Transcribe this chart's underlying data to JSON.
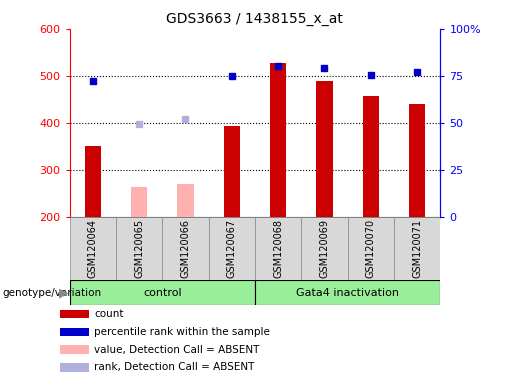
{
  "title": "GDS3663 / 1438155_x_at",
  "samples": [
    "GSM120064",
    "GSM120065",
    "GSM120066",
    "GSM120067",
    "GSM120068",
    "GSM120069",
    "GSM120070",
    "GSM120071"
  ],
  "bar_values": [
    350,
    null,
    null,
    393,
    527,
    490,
    457,
    440
  ],
  "bar_absent_values": [
    null,
    263,
    270,
    null,
    null,
    null,
    null,
    null
  ],
  "percentile_values": [
    490,
    null,
    null,
    500,
    520,
    517,
    502,
    508
  ],
  "percentile_absent_values": [
    null,
    398,
    408,
    null,
    null,
    null,
    null,
    null
  ],
  "bar_color": "#cc0000",
  "bar_absent_color": "#ffb0b0",
  "percentile_color": "#0000cc",
  "percentile_absent_color": "#b0b0dd",
  "ylim_left": [
    200,
    600
  ],
  "ylim_right": [
    0,
    100
  ],
  "yticks_left": [
    200,
    300,
    400,
    500,
    600
  ],
  "yticks_right": [
    0,
    25,
    50,
    75,
    100
  ],
  "yticklabels_right": [
    "0",
    "25",
    "50",
    "75",
    "100%"
  ],
  "grid_values": [
    300,
    400,
    500
  ],
  "control_label": "control",
  "treatment_label": "Gata4 inactivation",
  "group_bg_color": "#99ee99",
  "genotype_label": "genotype/variation",
  "bar_width": 0.35,
  "plot_bg_color": "#ffffff",
  "label_area_bg": "#d8d8d8",
  "legend_items": [
    {
      "label": "count",
      "color": "#cc0000"
    },
    {
      "label": "percentile rank within the sample",
      "color": "#0000cc"
    },
    {
      "label": "value, Detection Call = ABSENT",
      "color": "#ffb0b0"
    },
    {
      "label": "rank, Detection Call = ABSENT",
      "color": "#b0b0dd"
    }
  ]
}
